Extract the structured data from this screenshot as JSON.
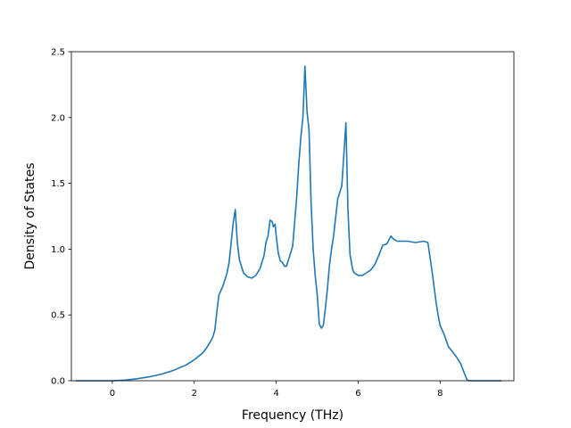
{
  "chart_data": {
    "type": "line",
    "title": "",
    "xlabel": "Frequency (THz)",
    "ylabel": "Density of States",
    "xlim": [
      -1.0,
      9.8
    ],
    "ylim": [
      0,
      2.5
    ],
    "xticks": [
      0,
      2,
      4,
      6,
      8
    ],
    "yticks": [
      0.0,
      0.5,
      1.0,
      1.5,
      2.0,
      2.5
    ],
    "ytick_labels": [
      "0.0",
      "0.5",
      "1.0",
      "1.5",
      "2.0",
      "2.5"
    ],
    "grid": false,
    "legend": "none",
    "colors": {
      "line": "#1f77b4",
      "axes": "#000000"
    },
    "series": [
      {
        "x": [
          -0.9,
          -0.5,
          0.0,
          0.3,
          0.6,
          0.9,
          1.2,
          1.5,
          1.8,
          2.0,
          2.2,
          2.3,
          2.4,
          2.45,
          2.5,
          2.55,
          2.6,
          2.7,
          2.8,
          2.85,
          2.9,
          2.95,
          3.0,
          3.05,
          3.1,
          3.2,
          3.3,
          3.4,
          3.5,
          3.6,
          3.7,
          3.75,
          3.8,
          3.85,
          3.9,
          3.93,
          3.97,
          4.0,
          4.05,
          4.1,
          4.15,
          4.2,
          4.25,
          4.3,
          4.35,
          4.4,
          4.5,
          4.55,
          4.6,
          4.65,
          4.7,
          4.75,
          4.8,
          4.85,
          4.9,
          4.95,
          5.0,
          5.05,
          5.1,
          5.15,
          5.2,
          5.25,
          5.3,
          5.35,
          5.4,
          5.5,
          5.6,
          5.7,
          5.75,
          5.8,
          5.85,
          5.87,
          5.9,
          5.95,
          6.0,
          6.1,
          6.2,
          6.3,
          6.4,
          6.5,
          6.6,
          6.7,
          6.8,
          6.85,
          6.9,
          6.95,
          7.0,
          7.2,
          7.4,
          7.6,
          7.7,
          7.8,
          7.85,
          7.9,
          7.95,
          8.0,
          8.1,
          8.2,
          8.3,
          8.4,
          8.5,
          8.6,
          8.65,
          8.7,
          9.0,
          9.3,
          9.5
        ],
        "y": [
          0.0,
          0.0,
          0.0,
          0.005,
          0.015,
          0.03,
          0.05,
          0.08,
          0.12,
          0.16,
          0.21,
          0.25,
          0.3,
          0.33,
          0.38,
          0.52,
          0.65,
          0.72,
          0.82,
          0.9,
          1.05,
          1.2,
          1.3,
          1.05,
          0.92,
          0.82,
          0.79,
          0.78,
          0.8,
          0.85,
          0.95,
          1.05,
          1.1,
          1.22,
          1.21,
          1.17,
          1.19,
          1.1,
          0.97,
          0.91,
          0.9,
          0.87,
          0.87,
          0.92,
          0.97,
          1.02,
          1.4,
          1.65,
          1.85,
          2.0,
          2.39,
          2.05,
          1.9,
          1.35,
          1.0,
          0.8,
          0.65,
          0.43,
          0.4,
          0.42,
          0.55,
          0.7,
          0.88,
          1.0,
          1.1,
          1.38,
          1.48,
          1.96,
          1.3,
          0.96,
          0.87,
          0.84,
          0.82,
          0.81,
          0.8,
          0.8,
          0.82,
          0.84,
          0.88,
          0.95,
          1.03,
          1.04,
          1.1,
          1.08,
          1.07,
          1.06,
          1.06,
          1.06,
          1.05,
          1.06,
          1.05,
          0.84,
          0.72,
          0.6,
          0.5,
          0.42,
          0.35,
          0.26,
          0.22,
          0.18,
          0.13,
          0.05,
          0.01,
          0.0,
          0.0,
          0.0,
          0.0
        ]
      }
    ]
  }
}
